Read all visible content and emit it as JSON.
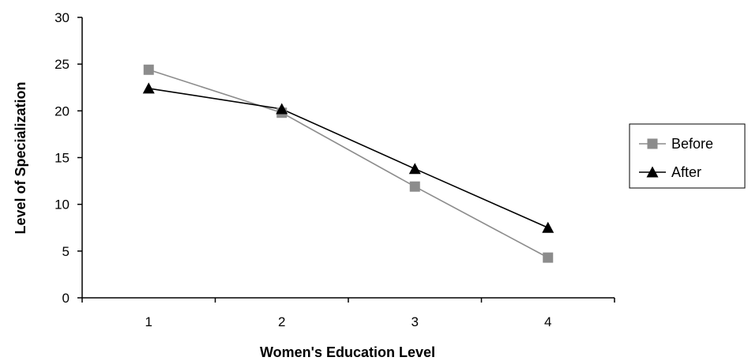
{
  "chart_data": {
    "type": "line",
    "title": "",
    "xlabel": "Women's Education Level",
    "ylabel": "Level of Specialization",
    "categories": [
      "1",
      "2",
      "3",
      "4"
    ],
    "ylim": [
      0,
      30
    ],
    "yticks": [
      "0",
      "5",
      "10",
      "15",
      "20",
      "25",
      "30"
    ],
    "grid": false,
    "legend_position": "right",
    "series": [
      {
        "name": "Before",
        "values": [
          24.4,
          19.8,
          11.9,
          4.3
        ],
        "color": "#8c8c8c",
        "marker": "square"
      },
      {
        "name": "After",
        "values": [
          22.4,
          20.2,
          13.8,
          7.5
        ],
        "color": "#000000",
        "marker": "triangle"
      }
    ]
  }
}
